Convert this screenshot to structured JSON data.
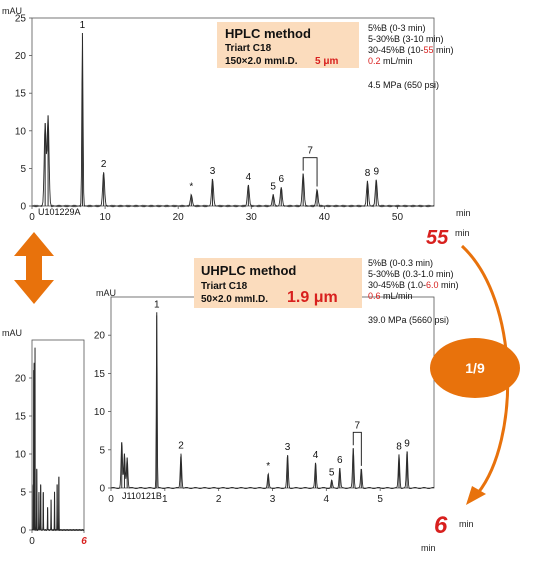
{
  "chart_data": [
    {
      "type": "line",
      "name": "hplc",
      "ylabel": "mAU",
      "xlabel": "min",
      "xlim": [
        0,
        55
      ],
      "ylim": [
        0,
        25
      ],
      "x_ticks": [
        0,
        10,
        20,
        30,
        40,
        50
      ],
      "y_ticks": [
        0,
        5,
        10,
        15,
        20,
        25
      ],
      "run_end_label": "55",
      "sample_label": "U101229A",
      "peaks": [
        {
          "label": "",
          "t": 1.8,
          "h": 11
        },
        {
          "label": "",
          "t": 2.2,
          "h": 12
        },
        {
          "label": "1",
          "t": 6.9,
          "h": 23
        },
        {
          "label": "2",
          "t": 9.8,
          "h": 4.5
        },
        {
          "label": "*",
          "t": 21.8,
          "h": 1.5
        },
        {
          "label": "3",
          "t": 24.7,
          "h": 3.6
        },
        {
          "label": "4",
          "t": 29.6,
          "h": 2.8
        },
        {
          "label": "5",
          "t": 33.0,
          "h": 1.5
        },
        {
          "label": "6",
          "t": 34.1,
          "h": 2.5
        },
        {
          "label": "7",
          "t": 37.1,
          "h": 4.3
        },
        {
          "label": "7",
          "t": 39.0,
          "h": 2.2
        },
        {
          "label": "8",
          "t": 45.9,
          "h": 3.3
        },
        {
          "label": "9",
          "t": 47.1,
          "h": 3.5
        }
      ],
      "method": {
        "title": "HPLC method",
        "column": "Triart C18",
        "dimensions": "150×2.0 mmI.D.",
        "particle": "5 μm",
        "gradient": [
          {
            "text": "5%B (0-3 min)",
            "highlight": "",
            "tail": ""
          },
          {
            "text": "5-30%B (3-10 min)",
            "highlight": "",
            "tail": ""
          },
          {
            "text": "30-45%B (10-",
            "highlight": "55",
            "tail": " min)"
          }
        ],
        "flow_value": "0.2",
        "flow_unit": " mL/min",
        "pressure": "4.5 MPa (650 psi)"
      }
    },
    {
      "type": "line",
      "name": "uhplc",
      "ylabel": "mAU",
      "xlabel": "min",
      "xlim": [
        0,
        6
      ],
      "ylim": [
        0,
        25
      ],
      "x_ticks": [
        0,
        1,
        2,
        3,
        4,
        5
      ],
      "y_ticks": [
        0,
        5,
        10,
        15,
        20
      ],
      "run_end_label": "6",
      "sample_label": "J110121B",
      "peaks": [
        {
          "label": "",
          "t": 0.2,
          "h": 6
        },
        {
          "label": "",
          "t": 0.25,
          "h": 4.5
        },
        {
          "label": "",
          "t": 0.3,
          "h": 4
        },
        {
          "label": "1",
          "t": 0.85,
          "h": 23
        },
        {
          "label": "2",
          "t": 1.3,
          "h": 4.5
        },
        {
          "label": "*",
          "t": 2.92,
          "h": 1.8
        },
        {
          "label": "3",
          "t": 3.28,
          "h": 4.3
        },
        {
          "label": "4",
          "t": 3.8,
          "h": 3.3
        },
        {
          "label": "5",
          "t": 4.1,
          "h": 1.0
        },
        {
          "label": "6",
          "t": 4.25,
          "h": 2.6
        },
        {
          "label": "7",
          "t": 4.5,
          "h": 5.2
        },
        {
          "label": "7",
          "t": 4.65,
          "h": 2.5
        },
        {
          "label": "8",
          "t": 5.35,
          "h": 4.4
        },
        {
          "label": "9",
          "t": 5.5,
          "h": 4.8
        }
      ],
      "method": {
        "title": "UHPLC method",
        "column": "Triart C18",
        "dimensions": "50×2.0 mmI.D.",
        "particle": "1.9 μm",
        "gradient": [
          {
            "text": "5%B (0-0.3 min)",
            "highlight": "",
            "tail": ""
          },
          {
            "text": "5-30%B (0.3-1.0 min)",
            "highlight": "",
            "tail": ""
          },
          {
            "text": "30-45%B (1.0-",
            "highlight": "6.0",
            "tail": " min)"
          }
        ],
        "flow_value": "0.6",
        "flow_unit": " mL/min",
        "pressure": "39.0 MPa (5660 psi)"
      }
    },
    {
      "type": "line",
      "name": "inset",
      "ylabel": "mAU",
      "xlim": [
        0,
        6
      ],
      "ylim": [
        0,
        25
      ],
      "x_ticks": [
        0,
        6
      ],
      "y_ticks": [
        0,
        5,
        10,
        15,
        20
      ],
      "x_tick_highlight": "6",
      "peaks": [
        {
          "label": "",
          "t": 0.15,
          "h": 6
        },
        {
          "label": "",
          "t": 0.2,
          "h": 21
        },
        {
          "label": "",
          "t": 0.25,
          "h": 22
        },
        {
          "label": "",
          "t": 0.35,
          "h": 24
        },
        {
          "label": "",
          "t": 0.55,
          "h": 8
        },
        {
          "label": "",
          "t": 0.8,
          "h": 5
        },
        {
          "label": "",
          "t": 1.0,
          "h": 6
        },
        {
          "label": "",
          "t": 1.3,
          "h": 5
        },
        {
          "label": "",
          "t": 1.8,
          "h": 3
        },
        {
          "label": "",
          "t": 2.2,
          "h": 4
        },
        {
          "label": "",
          "t": 2.6,
          "h": 5
        },
        {
          "label": "",
          "t": 2.9,
          "h": 6
        },
        {
          "label": "",
          "t": 3.1,
          "h": 7
        }
      ]
    }
  ],
  "speedup": "1/9",
  "colors": {
    "accent": "#e8720c",
    "box": "#fbdcbd",
    "highlight": "#d8201e",
    "trace": "#2a2a2a"
  }
}
